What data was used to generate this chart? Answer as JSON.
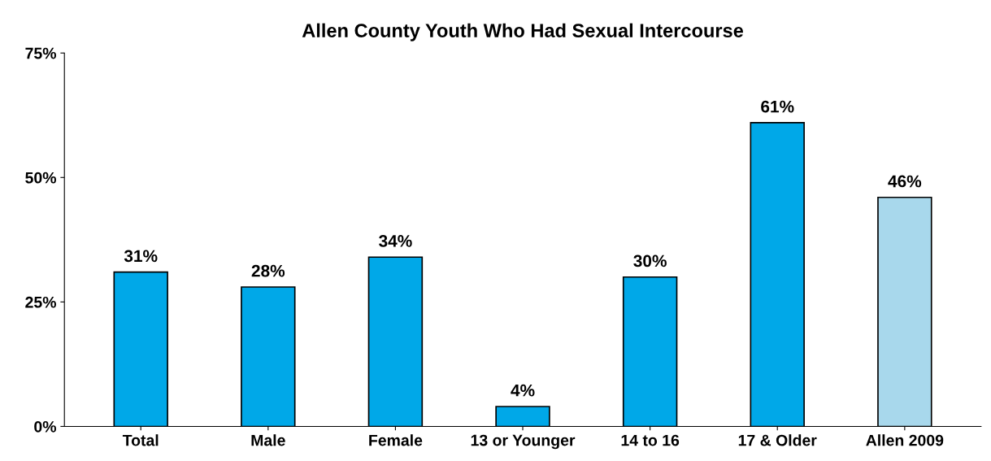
{
  "chart_data": {
    "type": "bar",
    "title": "Allen County Youth Who Had Sexual Intercourse",
    "categories": [
      "Total",
      "Male",
      "Female",
      "13 or Younger",
      "14 to 16",
      "17 & Older",
      "Allen 2009"
    ],
    "values": [
      31,
      28,
      34,
      4,
      30,
      61,
      46
    ],
    "colors": [
      "#00a8e8",
      "#00a8e8",
      "#00a8e8",
      "#00a8e8",
      "#00a8e8",
      "#00a8e8",
      "#a8d8ec"
    ],
    "value_labels": [
      "31%",
      "28%",
      "34%",
      "4%",
      "30%",
      "61%",
      "46%"
    ],
    "ylim": [
      0,
      75
    ],
    "yticks": [
      {
        "value": 0,
        "label": "0%"
      },
      {
        "value": 25,
        "label": "25%"
      },
      {
        "value": 50,
        "label": "50%"
      },
      {
        "value": 75,
        "label": "75%"
      }
    ],
    "grid": false
  }
}
